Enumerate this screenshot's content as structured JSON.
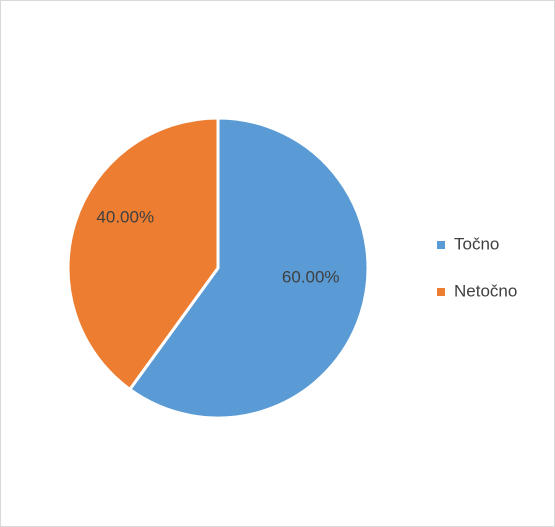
{
  "chart_data": {
    "type": "pie",
    "categories": [
      "Točno",
      "Netočno"
    ],
    "values": [
      60,
      40
    ],
    "value_labels": [
      "60.00%",
      "40.00%"
    ],
    "colors": [
      "#5b9bd5",
      "#ed7d31"
    ],
    "legend": "right"
  }
}
